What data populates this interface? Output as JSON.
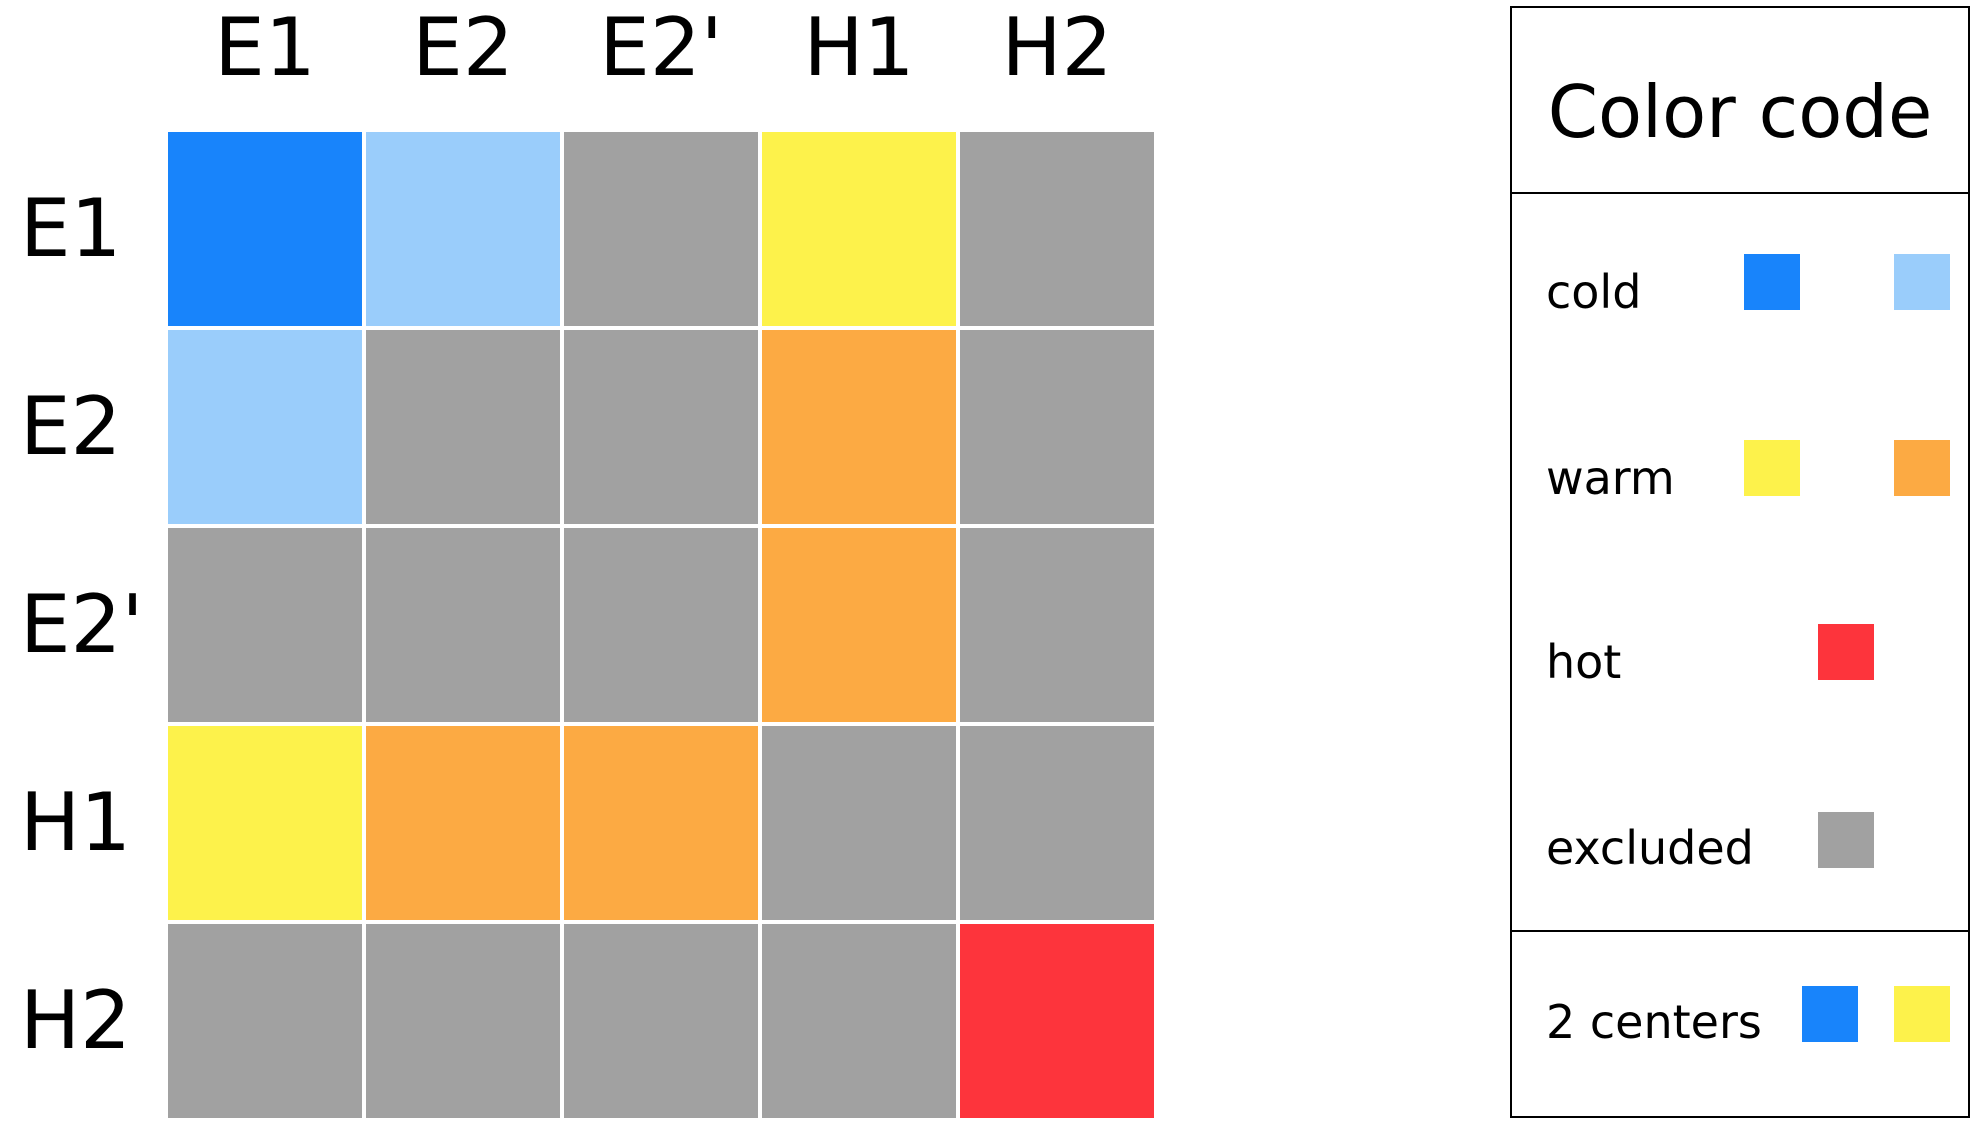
{
  "matrix": {
    "columns": [
      "E1",
      "E2",
      "E2'",
      "H1",
      "H2"
    ],
    "rows": [
      "E1",
      "E2",
      "E2'",
      "H1",
      "H2"
    ],
    "cells": [
      [
        "cold-dark",
        "cold-light",
        "excluded",
        "warm-light",
        "excluded"
      ],
      [
        "cold-light",
        "excluded",
        "excluded",
        "warm-dark",
        "excluded"
      ],
      [
        "excluded",
        "excluded",
        "excluded",
        "warm-dark",
        "excluded"
      ],
      [
        "warm-light",
        "warm-dark",
        "warm-dark",
        "excluded",
        "excluded"
      ],
      [
        "excluded",
        "excluded",
        "excluded",
        "excluded",
        "hot"
      ]
    ]
  },
  "colors": {
    "cold-dark": "#1884fb",
    "cold-light": "#9acdfb",
    "warm-light": "#fdf24b",
    "warm-dark": "#fcaa43",
    "hot": "#fd343c",
    "excluded": "#a1a1a1",
    "grid_line": "#ffffff"
  },
  "legend": {
    "title": "Color code",
    "entries": [
      {
        "label": "cold",
        "swatches": [
          "cold-dark",
          "cold-light"
        ]
      },
      {
        "label": "warm",
        "swatches": [
          "warm-light",
          "warm-dark"
        ]
      },
      {
        "label": "hot",
        "swatches": [
          "hot"
        ]
      },
      {
        "label": "excluded",
        "swatches": [
          "excluded"
        ]
      }
    ],
    "footer": {
      "label": "2 centers",
      "swatches": [
        "cold-dark",
        "warm-light"
      ]
    }
  }
}
